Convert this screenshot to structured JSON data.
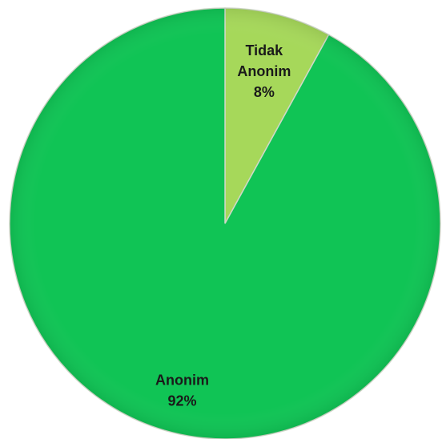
{
  "chart_data": {
    "type": "pie",
    "title": "",
    "start_angle_deg": 0,
    "direction": "clockwise",
    "legend": "none",
    "slices": [
      {
        "category": "Tidak Anonim",
        "label_lines": [
          "Tidak",
          "Anonim"
        ],
        "value": 8,
        "value_label": "8%",
        "color": "#A6D85A"
      },
      {
        "category": "Anonim",
        "label_lines": [
          "Anonim"
        ],
        "value": 92,
        "value_label": "92%",
        "color": "#10C455"
      }
    ]
  }
}
